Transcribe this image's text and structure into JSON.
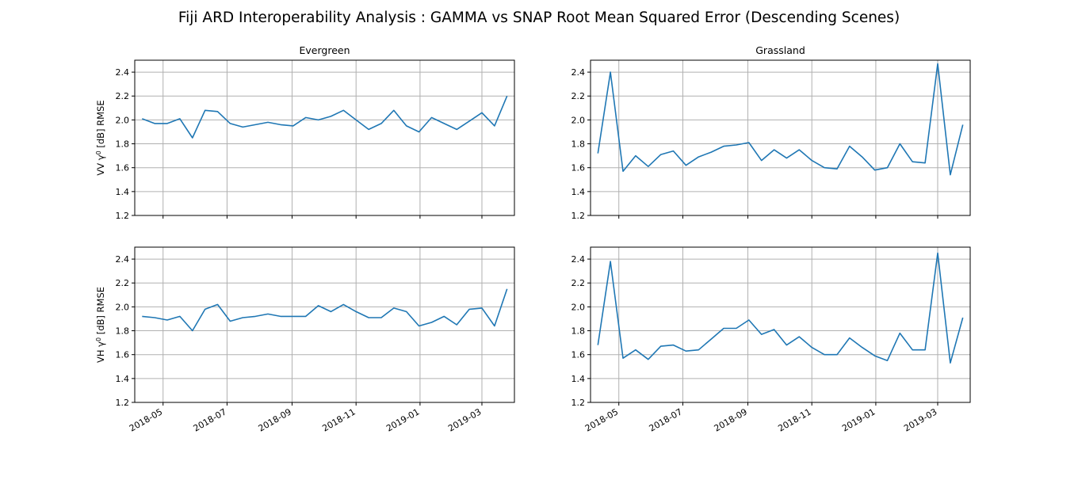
{
  "figure": {
    "title": "Fiji ARD Interoperability Analysis : GAMMA vs SNAP Root Mean Squared Error (Descending Scenes)",
    "line_color": "#1f77b4",
    "grid_color": "#b0b0b0"
  },
  "chart_data": [
    {
      "type": "line",
      "title": "Evergreen",
      "ylabel_prefix": "VV γ",
      "ylabel_sup": "0",
      "ylabel_suffix": " [dB] RMSE",
      "ylim": [
        1.2,
        2.5
      ],
      "yticks": [
        "1.2",
        "1.4",
        "1.6",
        "1.8",
        "2.0",
        "2.2",
        "2.4"
      ],
      "xticks": [],
      "grid": true,
      "series": [
        {
          "x": [
            "2018-04-11",
            "2018-04-23",
            "2018-05-05",
            "2018-05-17",
            "2018-05-29",
            "2018-06-10",
            "2018-06-22",
            "2018-07-04",
            "2018-07-16",
            "2018-07-28",
            "2018-08-09",
            "2018-08-21",
            "2018-09-02",
            "2018-09-14",
            "2018-09-26",
            "2018-10-08",
            "2018-10-20",
            "2018-11-01",
            "2018-11-13",
            "2018-11-25",
            "2018-12-07",
            "2018-12-19",
            "2018-12-31",
            "2019-01-12",
            "2019-01-24",
            "2019-02-05",
            "2019-02-17",
            "2019-03-01",
            "2019-03-13",
            "2019-03-25"
          ],
          "y": [
            2.01,
            1.97,
            1.97,
            2.01,
            1.85,
            2.08,
            2.07,
            1.97,
            1.94,
            1.96,
            1.98,
            1.96,
            1.95,
            2.02,
            2.0,
            2.03,
            2.08,
            2.0,
            1.92,
            1.97,
            2.08,
            1.95,
            1.9,
            2.02,
            1.97,
            1.92,
            1.99,
            2.06,
            1.95,
            2.2
          ]
        }
      ]
    },
    {
      "type": "line",
      "title": "Grassland",
      "ylabel_prefix": "",
      "ylabel_sup": "",
      "ylabel_suffix": "",
      "ylim": [
        1.2,
        2.5
      ],
      "yticks": [
        "1.2",
        "1.4",
        "1.6",
        "1.8",
        "2.0",
        "2.2",
        "2.4"
      ],
      "xticks": [],
      "grid": true,
      "series": [
        {
          "x": [
            "2018-04-11",
            "2018-04-23",
            "2018-05-05",
            "2018-05-17",
            "2018-05-29",
            "2018-06-10",
            "2018-06-22",
            "2018-07-04",
            "2018-07-16",
            "2018-07-28",
            "2018-08-09",
            "2018-08-21",
            "2018-09-02",
            "2018-09-14",
            "2018-09-26",
            "2018-10-08",
            "2018-10-20",
            "2018-11-01",
            "2018-11-13",
            "2018-11-25",
            "2018-12-07",
            "2018-12-19",
            "2018-12-31",
            "2019-01-12",
            "2019-01-24",
            "2019-02-05",
            "2019-02-17",
            "2019-03-01",
            "2019-03-13",
            "2019-03-25"
          ],
          "y": [
            1.72,
            2.4,
            1.57,
            1.7,
            1.61,
            1.71,
            1.74,
            1.62,
            1.69,
            1.73,
            1.78,
            1.79,
            1.81,
            1.66,
            1.75,
            1.68,
            1.75,
            1.66,
            1.6,
            1.59,
            1.78,
            1.69,
            1.58,
            1.6,
            1.8,
            1.65,
            1.64,
            2.47,
            1.54,
            1.96
          ]
        }
      ]
    },
    {
      "type": "line",
      "title": "",
      "ylabel_prefix": "VH γ",
      "ylabel_sup": "0",
      "ylabel_suffix": " [dB] RMSE",
      "ylim": [
        1.2,
        2.5
      ],
      "yticks": [
        "1.2",
        "1.4",
        "1.6",
        "1.8",
        "2.0",
        "2.2",
        "2.4"
      ],
      "xticks": [
        "2018-05",
        "2018-07",
        "2018-09",
        "2018-11",
        "2019-01",
        "2019-03"
      ],
      "grid": true,
      "series": [
        {
          "x": [
            "2018-04-11",
            "2018-04-23",
            "2018-05-05",
            "2018-05-17",
            "2018-05-29",
            "2018-06-10",
            "2018-06-22",
            "2018-07-04",
            "2018-07-16",
            "2018-07-28",
            "2018-08-09",
            "2018-08-21",
            "2018-09-02",
            "2018-09-14",
            "2018-09-26",
            "2018-10-08",
            "2018-10-20",
            "2018-11-01",
            "2018-11-13",
            "2018-11-25",
            "2018-12-07",
            "2018-12-19",
            "2018-12-31",
            "2019-01-12",
            "2019-01-24",
            "2019-02-05",
            "2019-02-17",
            "2019-03-01",
            "2019-03-13",
            "2019-03-25"
          ],
          "y": [
            1.92,
            1.91,
            1.89,
            1.92,
            1.8,
            1.98,
            2.02,
            1.88,
            1.91,
            1.92,
            1.94,
            1.92,
            1.92,
            1.92,
            2.01,
            1.96,
            2.02,
            1.96,
            1.91,
            1.91,
            1.99,
            1.96,
            1.84,
            1.87,
            1.92,
            1.85,
            1.98,
            1.99,
            1.84,
            2.15
          ]
        }
      ]
    },
    {
      "type": "line",
      "title": "",
      "ylabel_prefix": "",
      "ylabel_sup": "",
      "ylabel_suffix": "",
      "ylim": [
        1.2,
        2.5
      ],
      "yticks": [
        "1.2",
        "1.4",
        "1.6",
        "1.8",
        "2.0",
        "2.2",
        "2.4"
      ],
      "xticks": [
        "2018-05",
        "2018-07",
        "2018-09",
        "2018-11",
        "2019-01",
        "2019-03"
      ],
      "grid": true,
      "series": [
        {
          "x": [
            "2018-04-11",
            "2018-04-23",
            "2018-05-05",
            "2018-05-17",
            "2018-05-29",
            "2018-06-10",
            "2018-06-22",
            "2018-07-04",
            "2018-07-16",
            "2018-07-28",
            "2018-08-09",
            "2018-08-21",
            "2018-09-02",
            "2018-09-14",
            "2018-09-26",
            "2018-10-08",
            "2018-10-20",
            "2018-11-01",
            "2018-11-13",
            "2018-11-25",
            "2018-12-07",
            "2018-12-19",
            "2018-12-31",
            "2019-01-12",
            "2019-01-24",
            "2019-02-05",
            "2019-02-17",
            "2019-03-01",
            "2019-03-13",
            "2019-03-25"
          ],
          "y": [
            1.68,
            2.38,
            1.57,
            1.64,
            1.56,
            1.67,
            1.68,
            1.63,
            1.64,
            1.73,
            1.82,
            1.82,
            1.89,
            1.77,
            1.81,
            1.68,
            1.75,
            1.66,
            1.6,
            1.6,
            1.74,
            1.66,
            1.59,
            1.55,
            1.78,
            1.64,
            1.64,
            2.45,
            1.53,
            1.91
          ]
        }
      ]
    }
  ]
}
